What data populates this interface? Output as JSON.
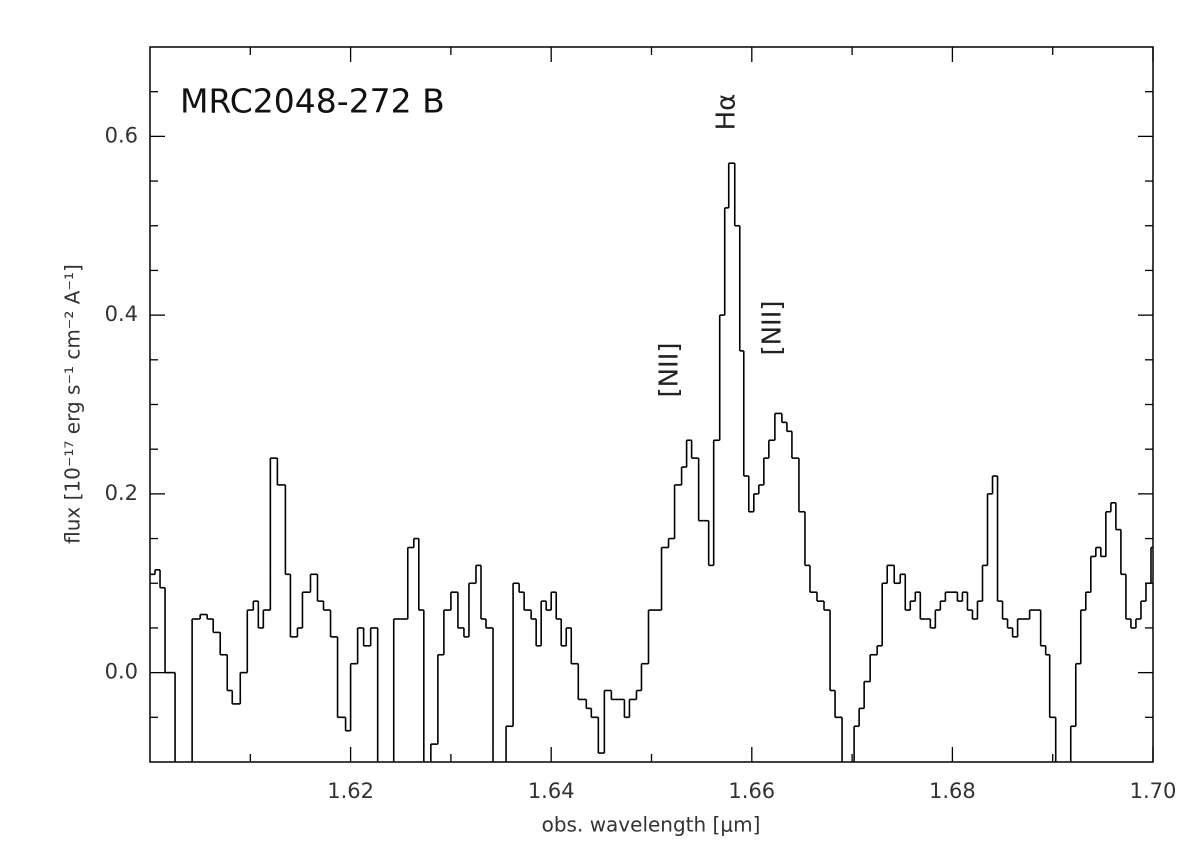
{
  "chart_data": {
    "type": "step",
    "title": "MRC2048-272 B",
    "x_label": "obs. wavelength [μm]",
    "y_label": "flux [10⁻¹⁷ erg s⁻¹ cm⁻² A⁻¹]",
    "annotations": [
      "Hα",
      "[NII]",
      "[NII]"
    ],
    "color": "#000000",
    "xlim": [
      1.6,
      1.7
    ],
    "ylim": [
      -0.1,
      0.7
    ],
    "xticks": [
      1.62,
      1.64,
      1.66,
      1.68,
      {
        "value": 1.7,
        "label": "1.70"
      }
    ],
    "yticks": [
      {
        "value": 0,
        "label": "0.0"
      },
      0.2,
      0.4,
      0.6
    ],
    "xminor": [
      1.61,
      1.63,
      1.65,
      1.67,
      1.69
    ],
    "yminor": [
      -0.05,
      0.05,
      0.1,
      0.15,
      0.25,
      0.3,
      0.35,
      0.45,
      0.5,
      0.55,
      0.65
    ],
    "x": [
      1.6,
      1.6005,
      1.601,
      1.6015,
      1.6025,
      1.6042,
      1.605,
      1.6057,
      1.6063,
      1.607,
      1.6077,
      1.6082,
      1.609,
      1.6097,
      1.6103,
      1.6108,
      1.6113,
      1.612,
      1.6127,
      1.6135,
      1.614,
      1.6147,
      1.6152,
      1.616,
      1.6167,
      1.6173,
      1.618,
      1.6187,
      1.6195,
      1.62,
      1.6207,
      1.6213,
      1.622,
      1.6227,
      1.6243,
      1.625,
      1.6257,
      1.6263,
      1.6268,
      1.6273,
      1.628,
      1.6287,
      1.6293,
      1.63,
      1.6307,
      1.6313,
      1.6318,
      1.6325,
      1.633,
      1.6335,
      1.6342,
      1.6355,
      1.6362,
      1.6368,
      1.6373,
      1.638,
      1.6385,
      1.639,
      1.6395,
      1.64,
      1.6405,
      1.641,
      1.6415,
      1.642,
      1.6427,
      1.6435,
      1.644,
      1.6447,
      1.6453,
      1.646,
      1.6467,
      1.6473,
      1.6478,
      1.6485,
      1.649,
      1.6497,
      1.6503,
      1.651,
      1.6517,
      1.6523,
      1.653,
      1.6535,
      1.654,
      1.6547,
      1.6552,
      1.6557,
      1.6562,
      1.6568,
      1.6573,
      1.6577,
      1.6583,
      1.6588,
      1.6592,
      1.6597,
      1.6602,
      1.6607,
      1.6612,
      1.6617,
      1.6623,
      1.663,
      1.6635,
      1.664,
      1.6647,
      1.6653,
      1.6658,
      1.6665,
      1.6672,
      1.6678,
      1.6683,
      1.669,
      1.6702,
      1.6707,
      1.6712,
      1.6718,
      1.6725,
      1.673,
      1.6735,
      1.6742,
      1.6748,
      1.6753,
      1.6758,
      1.6763,
      1.6768,
      1.6773,
      1.6778,
      1.6783,
      1.6788,
      1.6793,
      1.6798,
      1.6805,
      1.681,
      1.6815,
      1.682,
      1.6825,
      1.683,
      1.6835,
      1.684,
      1.6845,
      1.685,
      1.6855,
      1.686,
      1.6865,
      1.687,
      1.6877,
      1.6883,
      1.6888,
      1.6893,
      1.6897,
      1.6903,
      1.6918,
      1.6923,
      1.6928,
      1.6933,
      1.6938,
      1.6943,
      1.6948,
      1.6953,
      1.6958,
      1.6963,
      1.6968,
      1.6973,
      1.6978,
      1.6983,
      1.6988,
      1.6993,
      1.6998
    ],
    "values": [
      0.11,
      0.115,
      0.095,
      0.0,
      -0.12,
      0.06,
      0.065,
      0.06,
      0.045,
      0.02,
      -0.02,
      -0.035,
      0.0,
      0.07,
      0.08,
      0.05,
      0.07,
      0.24,
      0.21,
      0.11,
      0.04,
      0.05,
      0.09,
      0.11,
      0.08,
      0.07,
      0.04,
      -0.05,
      -0.065,
      0.01,
      0.05,
      0.03,
      0.05,
      -0.12,
      0.06,
      0.06,
      0.14,
      0.15,
      0.07,
      -0.12,
      -0.08,
      0.02,
      0.07,
      0.09,
      0.05,
      0.04,
      0.1,
      0.12,
      0.06,
      0.05,
      -0.12,
      -0.06,
      0.1,
      0.09,
      0.07,
      0.06,
      0.03,
      0.08,
      0.07,
      0.09,
      0.06,
      0.03,
      0.05,
      0.01,
      -0.03,
      -0.04,
      -0.05,
      -0.09,
      -0.02,
      -0.03,
      -0.03,
      -0.05,
      -0.03,
      -0.02,
      0.01,
      0.07,
      0.07,
      0.14,
      0.15,
      0.21,
      0.23,
      0.26,
      0.24,
      0.17,
      0.17,
      0.12,
      0.26,
      0.4,
      0.52,
      0.57,
      0.5,
      0.36,
      0.22,
      0.18,
      0.2,
      0.21,
      0.24,
      0.26,
      0.29,
      0.28,
      0.27,
      0.24,
      0.18,
      0.12,
      0.09,
      0.08,
      0.07,
      -0.02,
      -0.05,
      -0.12,
      -0.06,
      -0.04,
      -0.01,
      0.02,
      0.03,
      0.1,
      0.12,
      0.1,
      0.11,
      0.07,
      0.08,
      0.09,
      0.06,
      0.06,
      0.05,
      0.07,
      0.08,
      0.09,
      0.09,
      0.08,
      0.09,
      0.07,
      0.06,
      0.08,
      0.12,
      0.2,
      0.22,
      0.08,
      0.06,
      0.05,
      0.04,
      0.06,
      0.06,
      0.07,
      0.07,
      0.03,
      0.02,
      -0.05,
      -0.12,
      -0.06,
      0.01,
      0.07,
      0.09,
      0.13,
      0.14,
      0.13,
      0.18,
      0.19,
      0.16,
      0.11,
      0.06,
      0.05,
      0.06,
      0.08,
      0.1,
      0.14
    ]
  }
}
